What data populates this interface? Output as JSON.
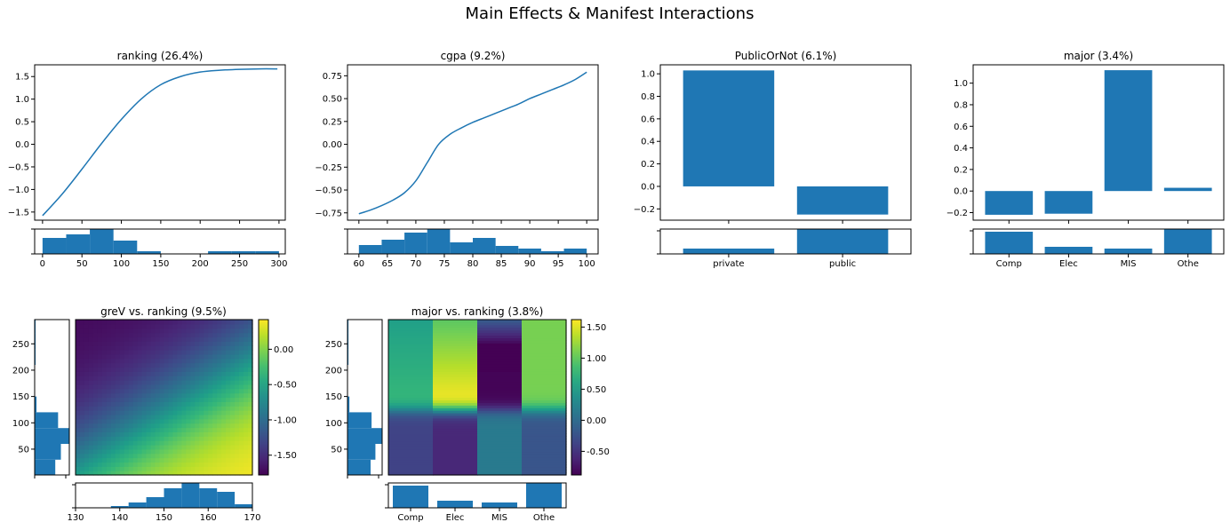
{
  "figure_title": "Main Effects & Manifest Interactions",
  "colors": {
    "bar": "#1f77b4",
    "line": "#1f77b4",
    "colormap": "viridis"
  },
  "chart_data": [
    {
      "id": "ranking",
      "type": "line",
      "title": "ranking (26.4%)",
      "x": [
        0,
        25,
        50,
        75,
        100,
        125,
        150,
        175,
        200,
        225,
        250,
        275,
        298
      ],
      "y": [
        -1.58,
        -1.1,
        -0.55,
        0.02,
        0.55,
        1.0,
        1.32,
        1.5,
        1.6,
        1.64,
        1.66,
        1.67,
        1.67
      ],
      "xlim": [
        -10,
        308
      ],
      "ylim": [
        -1.68,
        1.76
      ],
      "yticks": [
        -1.5,
        -1.0,
        -0.5,
        0.0,
        0.5,
        1.0,
        1.5
      ],
      "hist": {
        "xticks": [
          0,
          50,
          100,
          150,
          200,
          250,
          300
        ],
        "bin_edges": [
          0,
          30,
          60,
          90,
          120,
          150,
          180,
          210,
          240,
          270,
          300
        ],
        "counts": [
          18,
          22,
          28,
          15,
          3,
          0,
          0,
          3,
          3,
          3
        ]
      }
    },
    {
      "id": "cgpa",
      "type": "line",
      "title": "cgpa (9.2%)",
      "x": [
        60,
        62,
        64,
        66,
        68,
        70,
        72,
        74,
        76,
        78,
        80,
        82,
        84,
        86,
        88,
        90,
        92,
        94,
        96,
        98,
        100
      ],
      "y": [
        -0.76,
        -0.72,
        -0.67,
        -0.61,
        -0.53,
        -0.4,
        -0.2,
        0.0,
        0.11,
        0.18,
        0.24,
        0.29,
        0.34,
        0.39,
        0.44,
        0.5,
        0.55,
        0.6,
        0.65,
        0.71,
        0.79
      ],
      "xlim": [
        58,
        102
      ],
      "ylim": [
        -0.83,
        0.87
      ],
      "yticks": [
        -0.75,
        -0.5,
        -0.25,
        0.0,
        0.25,
        0.5,
        0.75
      ],
      "hist": {
        "xticks": [
          60,
          65,
          70,
          75,
          80,
          85,
          90,
          95,
          100
        ],
        "bin_edges": [
          60,
          64,
          68,
          72,
          76,
          80,
          84,
          88,
          92,
          96,
          100
        ],
        "counts": [
          10,
          16,
          24,
          28,
          13,
          18,
          9,
          6,
          3,
          6
        ]
      }
    },
    {
      "id": "PublicOrNot",
      "type": "bar",
      "title": "PublicOrNot (6.1%)",
      "categories": [
        "private",
        "public"
      ],
      "values": [
        1.03,
        -0.25
      ],
      "ylim": [
        -0.3,
        1.08
      ],
      "yticks": [
        -0.2,
        0.0,
        0.2,
        0.4,
        0.6,
        0.8,
        1.0
      ],
      "hist": {
        "counts": [
          6,
          28
        ]
      }
    },
    {
      "id": "major",
      "type": "bar",
      "title": "major (3.4%)",
      "categories": [
        "Comp",
        "Elec",
        "MIS",
        "Othe"
      ],
      "values": [
        -0.22,
        -0.21,
        1.12,
        0.03
      ],
      "ylim": [
        -0.27,
        1.17
      ],
      "yticks": [
        -0.2,
        0.0,
        0.2,
        0.4,
        0.6,
        0.8,
        1.0
      ],
      "hist": {
        "counts": [
          25,
          8,
          6,
          28
        ]
      }
    },
    {
      "id": "greV_ranking",
      "type": "heatmap",
      "title": "greV vs. ranking (9.5%)",
      "x_name": "greV",
      "y_name": "ranking",
      "xlim": [
        130,
        170
      ],
      "ylim": [
        1,
        296
      ],
      "xticks": [
        130,
        140,
        150,
        160,
        170
      ],
      "yticks": [
        50,
        100,
        150,
        200,
        250
      ],
      "colorbar": {
        "ticks": [
          "0.00",
          "-0.50",
          "-1.00",
          "-1.50"
        ],
        "tick_values": [
          0.0,
          -0.5,
          -1.0,
          -1.5
        ],
        "vmin": -1.78,
        "vmax": 0.42
      },
      "x_hist": {
        "bin_edges": [
          130,
          134,
          138,
          142,
          146,
          150,
          154,
          158,
          162,
          166,
          170
        ],
        "counts": [
          0,
          0,
          1,
          3,
          6,
          11,
          14,
          11,
          9,
          2
        ]
      },
      "y_hist": {
        "bin_edges": [
          1,
          30,
          60,
          90,
          120,
          150,
          180,
          210,
          240,
          270,
          296
        ],
        "counts": [
          22,
          28,
          37,
          25,
          2,
          0,
          0,
          1,
          1,
          1
        ]
      }
    },
    {
      "id": "major_ranking",
      "type": "heatmap",
      "title": "major vs. ranking (3.8%)",
      "x_name": "major",
      "y_name": "ranking",
      "categories": [
        "Comp",
        "Elec",
        "MIS",
        "Othe"
      ],
      "ylim": [
        1,
        296
      ],
      "yticks": [
        50,
        100,
        150,
        200,
        250
      ],
      "colorbar": {
        "ticks": [
          "1.50",
          "1.00",
          "0.50",
          "0.00",
          "-0.50"
        ],
        "tick_values": [
          1.5,
          1.0,
          0.5,
          0.0,
          -0.5
        ],
        "vmin": -0.88,
        "vmax": 1.62
      },
      "x_hist": {
        "counts": [
          25,
          8,
          6,
          28
        ]
      },
      "y_hist": {
        "bin_edges": [
          1,
          30,
          60,
          90,
          120,
          150,
          180,
          210,
          240,
          270,
          296
        ],
        "counts": [
          24,
          29,
          36,
          25,
          2,
          0,
          0,
          1,
          1,
          1
        ]
      }
    }
  ]
}
